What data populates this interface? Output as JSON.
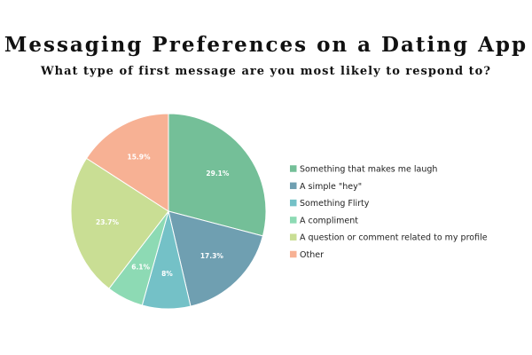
{
  "chart_data": {
    "type": "pie",
    "title": "Messaging Preferences on a Dating App",
    "subtitle": "What type of first message are you most likely to respond to?",
    "legend_position": "right",
    "slices": [
      {
        "label": "Something that makes me laugh",
        "value": 29.1,
        "display": "29.1%",
        "color": "#74bf98"
      },
      {
        "label": "A simple \"hey\"",
        "value": 17.3,
        "display": "17.3%",
        "color": "#6f9fb1"
      },
      {
        "label": "Something Flirty",
        "value": 8,
        "display": "8%",
        "color": "#74c1c7"
      },
      {
        "label": "A compliment",
        "value": 6.1,
        "display": "6.1%",
        "color": "#8ddab4"
      },
      {
        "label": "A question or comment related to my profile",
        "value": 23.7,
        "display": "23.7%",
        "color": "#c9de94"
      },
      {
        "label": "Other",
        "value": 15.9,
        "display": "15.9%",
        "color": "#f7b194"
      }
    ]
  }
}
